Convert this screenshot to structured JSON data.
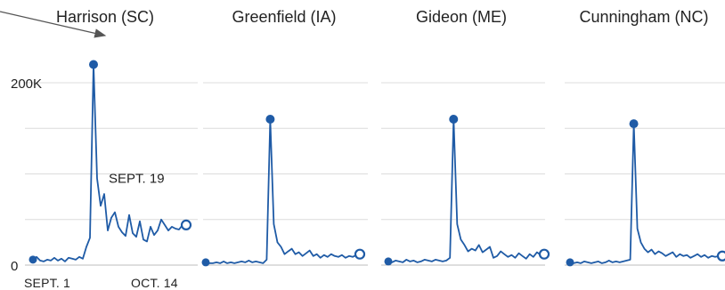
{
  "chart_data": [
    {
      "type": "line",
      "title": "Harrison (SC)",
      "ylim": [
        0,
        240000
      ],
      "yticks": [
        0,
        200000
      ],
      "ytick_labels": [
        "0",
        "200K"
      ],
      "x_labels": [
        "SEPT. 1",
        "OCT. 14"
      ],
      "grid": true,
      "annotations": [
        {
          "text": "SEPT. 19",
          "x": 18
        }
      ],
      "series": [
        {
          "values": [
            6000,
            9000,
            5000,
            4000,
            6000,
            5000,
            8000,
            5000,
            7000,
            4000,
            8000,
            7000,
            6000,
            9000,
            7000,
            20000,
            30000,
            220000,
            95000,
            65000,
            78000,
            38000,
            52000,
            58000,
            42000,
            36000,
            32000,
            55000,
            35000,
            31000,
            48000,
            28000,
            26000,
            42000,
            33000,
            38000,
            50000,
            44000,
            38000,
            42000,
            40000,
            39000,
            44000,
            44000
          ]
        }
      ]
    },
    {
      "type": "line",
      "title": "Greenfield (IA)",
      "ylim": [
        0,
        240000
      ],
      "grid": true,
      "series": [
        {
          "values": [
            3000,
            2000,
            2000,
            3000,
            2000,
            4000,
            2000,
            3000,
            2000,
            3000,
            4000,
            3000,
            5000,
            3000,
            4000,
            3000,
            2000,
            6000,
            160000,
            45000,
            25000,
            20000,
            12000,
            15000,
            18000,
            12000,
            14000,
            10000,
            13000,
            16000,
            10000,
            12000,
            8000,
            11000,
            9000,
            12000,
            10000,
            9000,
            11000,
            8000,
            10000,
            9000,
            11000,
            12000
          ]
        }
      ]
    },
    {
      "type": "line",
      "title": "Gideon (ME)",
      "ylim": [
        0,
        240000
      ],
      "grid": true,
      "series": [
        {
          "values": [
            4000,
            3000,
            5000,
            4000,
            3000,
            6000,
            4000,
            5000,
            3000,
            4000,
            6000,
            5000,
            4000,
            6000,
            5000,
            4000,
            5000,
            8000,
            160000,
            45000,
            28000,
            22000,
            15000,
            18000,
            16000,
            22000,
            14000,
            17000,
            20000,
            8000,
            10000,
            15000,
            12000,
            9000,
            11000,
            8000,
            13000,
            10000,
            7000,
            12000,
            9000,
            14000,
            11000,
            12000
          ]
        }
      ]
    },
    {
      "type": "line",
      "title": "Cunningham (NC)",
      "ylim": [
        0,
        240000
      ],
      "grid": true,
      "series": [
        {
          "values": [
            3000,
            2000,
            3000,
            2000,
            4000,
            3000,
            2000,
            3000,
            4000,
            2000,
            3000,
            5000,
            3000,
            4000,
            3000,
            4000,
            5000,
            6000,
            155000,
            40000,
            25000,
            18000,
            14000,
            17000,
            12000,
            15000,
            13000,
            10000,
            12000,
            14000,
            9000,
            12000,
            10000,
            11000,
            8000,
            10000,
            12000,
            9000,
            11000,
            8000,
            10000,
            9000,
            10000,
            10000
          ]
        }
      ]
    }
  ],
  "colors": {
    "series": "#1f5ba6",
    "grid": "#dcdcdc",
    "baseline": "#bdbdbd",
    "text": "#222222",
    "arrow": "#555555"
  }
}
